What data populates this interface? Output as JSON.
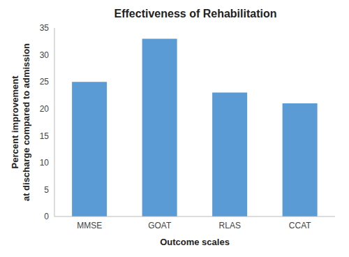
{
  "chart_data": {
    "type": "bar",
    "title": "Effectiveness of Rehabilitation",
    "x_label": "Outcome scales",
    "y_label": [
      "Percent improvement",
      "at discharge compared to admission"
    ],
    "categories": [
      "MMSE",
      "GOAT",
      "RLAS",
      "CCAT"
    ],
    "values": [
      25,
      33,
      23,
      21
    ],
    "color": "#5b9bd5",
    "ylim": [
      0,
      35
    ],
    "yticks": [
      0,
      5,
      10,
      15,
      20,
      25,
      30,
      35
    ],
    "grid": false
  }
}
